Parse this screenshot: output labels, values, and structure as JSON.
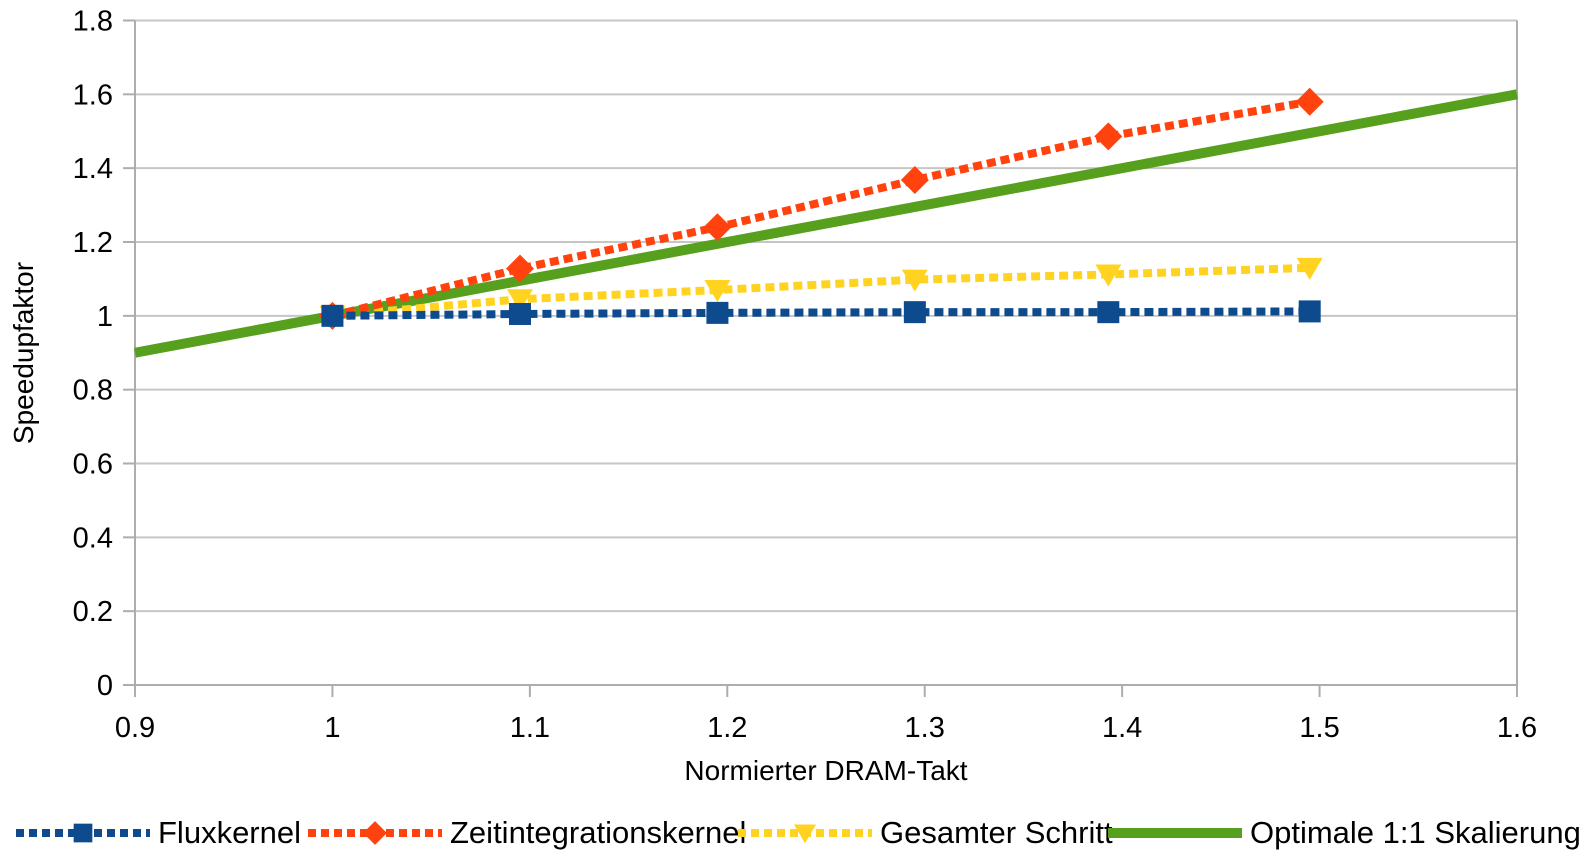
{
  "chart_data": {
    "type": "line",
    "xlabel": "Normierter DRAM-Takt",
    "ylabel": "Speedupfaktor",
    "xlim": [
      0.9,
      1.6
    ],
    "ylim": [
      0,
      1.8
    ],
    "xticks": [
      0.9,
      1.0,
      1.1,
      1.2,
      1.3,
      1.4,
      1.5,
      1.6
    ],
    "yticks": [
      0,
      0.2,
      0.4,
      0.6,
      0.8,
      1.0,
      1.2,
      1.4,
      1.6,
      1.8
    ],
    "grid": "horizontal-only",
    "legend_position": "bottom",
    "background_color": "#ffffff",
    "axis_color": "#adadad",
    "grid_color": "#c6c6c6",
    "text_color": "#000000",
    "series": [
      {
        "name": "Fluxkernel",
        "color": "#0d4a8e",
        "marker": "square",
        "line": "dotted",
        "x": [
          1.0,
          1.095,
          1.195,
          1.295,
          1.393,
          1.495
        ],
        "y": [
          1.0,
          1.005,
          1.008,
          1.01,
          1.01,
          1.012
        ]
      },
      {
        "name": "Zeitintegrationskernel",
        "color": "#ff420e",
        "marker": "diamond",
        "line": "dotted",
        "x": [
          1.0,
          1.095,
          1.195,
          1.295,
          1.393,
          1.495
        ],
        "y": [
          1.0,
          1.128,
          1.24,
          1.368,
          1.486,
          1.58
        ]
      },
      {
        "name": "Gesamter Schritt",
        "color": "#ffd320",
        "marker": "triangle-down",
        "line": "dotted",
        "x": [
          1.0,
          1.095,
          1.195,
          1.295,
          1.393,
          1.495
        ],
        "y": [
          1.0,
          1.045,
          1.07,
          1.098,
          1.112,
          1.13
        ]
      },
      {
        "name": "Optimale 1:1 Skalierung",
        "color": "#57a01d",
        "marker": "none",
        "line": "solid",
        "x": [
          0.9,
          1.6
        ],
        "y": [
          0.9,
          1.6
        ]
      }
    ]
  }
}
